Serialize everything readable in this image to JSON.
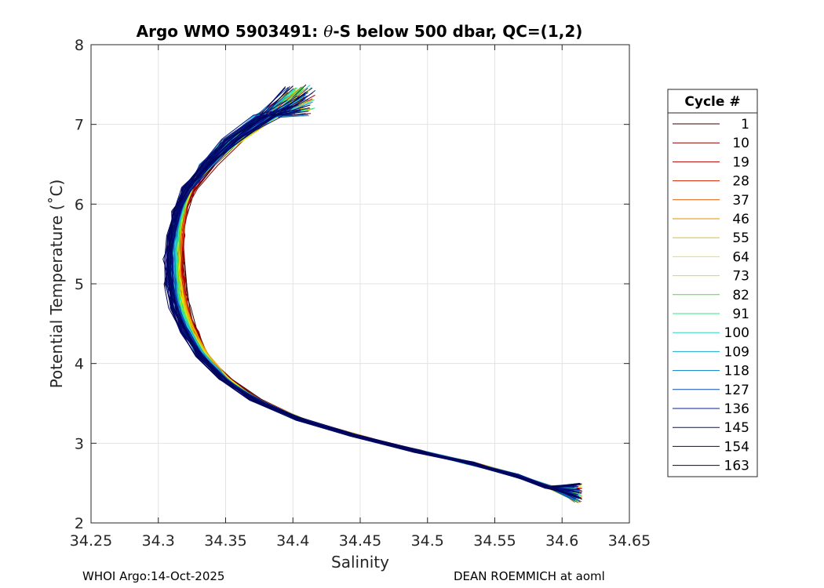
{
  "chart_data": {
    "type": "line",
    "title_prefix": "Argo WMO 5903491: ",
    "title_symbol": "θ",
    "title_suffix": "-S below 500 dbar,  QC=(1,2)",
    "xlabel": "Salinity",
    "ylabel": "Potential Temperature (˚C)",
    "xlim": [
      34.25,
      34.65
    ],
    "ylim": [
      2,
      8
    ],
    "xticks": [
      "34.25",
      "34.3",
      "34.35",
      "34.4",
      "34.45",
      "34.5",
      "34.55",
      "34.6",
      "34.65"
    ],
    "xtick_values": [
      34.25,
      34.3,
      34.35,
      34.4,
      34.45,
      34.5,
      34.55,
      34.6,
      34.65
    ],
    "yticks": [
      "2",
      "3",
      "4",
      "5",
      "6",
      "7",
      "8"
    ],
    "ytick_values": [
      2,
      3,
      4,
      5,
      6,
      7,
      8
    ],
    "grid": true,
    "legend": {
      "title": "Cycle #",
      "placement": "right",
      "entries": [
        "1",
        "10",
        "19",
        "28",
        "37",
        "46",
        "55",
        "64",
        "73",
        "82",
        "91",
        "100",
        "109",
        "118",
        "127",
        "136",
        "145",
        "154",
        "163"
      ],
      "colors": [
        "#3a0000",
        "#8b0000",
        "#b00000",
        "#d22000",
        "#e05a00",
        "#ee8c00",
        "#e6c000",
        "#f5e600",
        "#b5ee2a",
        "#4ddd3a",
        "#2ee88a",
        "#2ed6c9",
        "#1aa8d6",
        "#0a7cc2",
        "#0a4fb0",
        "#061f9c",
        "#05107e",
        "#050a6a",
        "#02045a"
      ]
    },
    "mean_profile": {
      "theta": [
        7.35,
        7.1,
        6.8,
        6.5,
        6.2,
        5.9,
        5.6,
        5.3,
        5.0,
        4.7,
        4.4,
        4.1,
        3.8,
        3.55,
        3.3,
        3.1,
        2.9,
        2.75,
        2.6,
        2.45,
        2.28
      ],
      "salinity": [
        34.405,
        34.38,
        34.355,
        34.337,
        34.323,
        34.316,
        34.313,
        34.312,
        34.313,
        34.316,
        34.323,
        34.333,
        34.35,
        34.372,
        34.405,
        34.445,
        34.492,
        34.532,
        34.565,
        34.59,
        34.612
      ]
    }
  },
  "footer": {
    "left": "WHOI Argo:14-Oct-2025",
    "right": "DEAN ROEMMICH at aoml"
  }
}
